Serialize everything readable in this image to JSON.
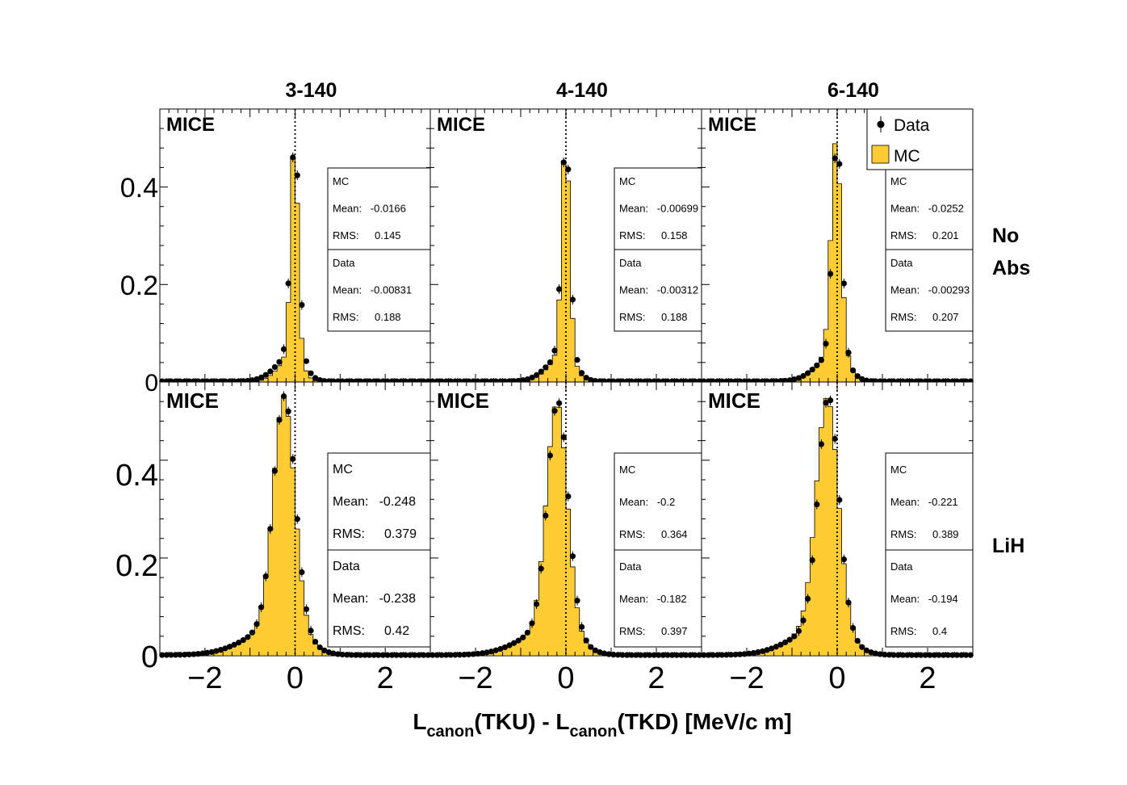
{
  "columns": [
    "3-140",
    "4-140",
    "6-140"
  ],
  "rows": [
    [
      "No",
      "Abs"
    ],
    [
      "LiH"
    ]
  ],
  "experiment_label": "MICE",
  "x_axis": {
    "label_parts": [
      "L",
      "canon",
      "(TKU) - L",
      "canon",
      "(TKD) [MeV/c m]"
    ],
    "ticks": [
      "−2",
      "0",
      "2"
    ]
  },
  "y_ticks": [
    "0",
    "0.2",
    "0.4"
  ],
  "legend": {
    "data": "Data",
    "mc": "MC"
  },
  "colors": {
    "mc_fill": "#ffcc33",
    "points": "#000000"
  },
  "stat_labels": {
    "mc": "MC",
    "data": "Data",
    "mean": "Mean:",
    "rms": "RMS:"
  },
  "stats": [
    [
      {
        "mc_mean": "-0.0166",
        "mc_rms": "0.145",
        "data_mean": "-0.00831",
        "data_rms": "0.188"
      },
      {
        "mc_mean": "-0.00699",
        "mc_rms": "0.158",
        "data_mean": "-0.00312",
        "data_rms": "0.188"
      },
      {
        "mc_mean": "-0.0252",
        "mc_rms": "0.201",
        "data_mean": "-0.00293",
        "data_rms": "0.207"
      }
    ],
    [
      {
        "mc_mean": "-0.248",
        "mc_rms": "0.379",
        "data_mean": "-0.238",
        "data_rms": "0.42"
      },
      {
        "mc_mean": "-0.2",
        "mc_rms": "0.364",
        "data_mean": "-0.182",
        "data_rms": "0.397"
      },
      {
        "mc_mean": "-0.221",
        "mc_rms": "0.389",
        "data_mean": "-0.194",
        "data_rms": "0.4"
      }
    ]
  ],
  "chart_data": {
    "type": "histogram-grid",
    "xlim": [
      -3,
      3
    ],
    "ylim": [
      0,
      0.56
    ],
    "bin_width": 0.1,
    "marker_x": 0,
    "panels": [
      [
        {
          "peak_mc": 0.5,
          "peak_data": 0.5,
          "mc_mean": -0.0166,
          "mc_rms": 0.145,
          "data_mean": -0.00831,
          "data_rms": 0.188
        },
        {
          "peak_mc": 0.5,
          "peak_data": 0.5,
          "mc_mean": -0.00699,
          "mc_rms": 0.158,
          "data_mean": -0.00312,
          "data_rms": 0.188
        },
        {
          "peak_mc": 0.5,
          "peak_data": 0.5,
          "mc_mean": -0.0252,
          "mc_rms": 0.201,
          "data_mean": -0.00293,
          "data_rms": 0.207
        }
      ],
      [
        {
          "peak_mc": 0.53,
          "peak_data": 0.53,
          "mc_mean": -0.248,
          "mc_rms": 0.379,
          "data_mean": -0.238,
          "data_rms": 0.42
        },
        {
          "peak_mc": 0.52,
          "peak_data": 0.52,
          "mc_mean": -0.2,
          "mc_rms": 0.364,
          "data_mean": -0.182,
          "data_rms": 0.397
        },
        {
          "peak_mc": 0.53,
          "peak_data": 0.53,
          "mc_mean": -0.221,
          "mc_rms": 0.389,
          "data_mean": -0.194,
          "data_rms": 0.4
        }
      ]
    ]
  }
}
